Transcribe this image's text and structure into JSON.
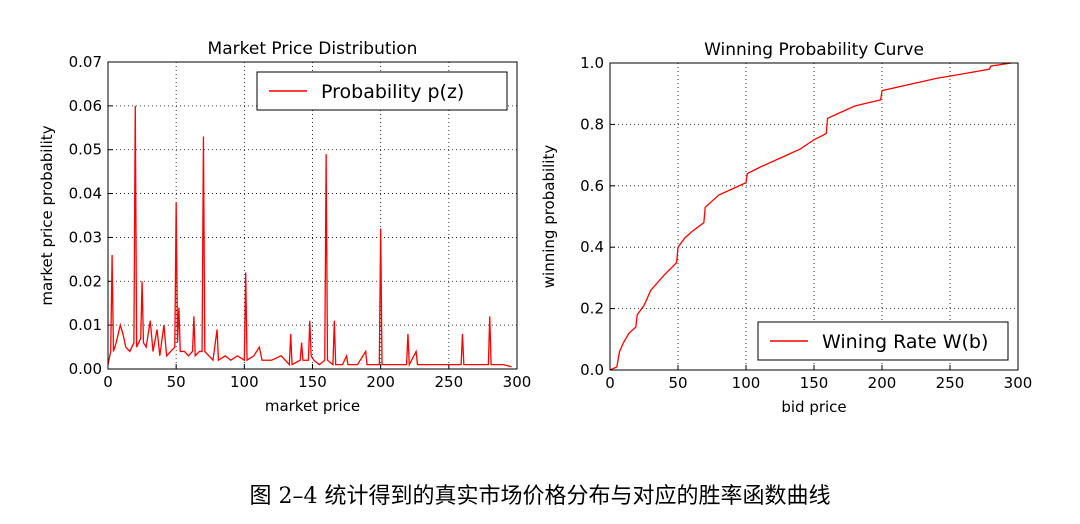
{
  "chart_data": [
    {
      "type": "line",
      "title": "Market Price Distribution",
      "xlabel": "market price",
      "ylabel": "market price probability",
      "xlim": [
        0,
        300
      ],
      "ylim": [
        0,
        0.07
      ],
      "xticks": [
        0,
        50,
        100,
        150,
        200,
        250,
        300
      ],
      "yticks": [
        {
          "value": 0,
          "label": "0.00"
        },
        {
          "value": 0.01,
          "label": "0.01"
        },
        {
          "value": 0.02,
          "label": "0.02"
        },
        {
          "value": 0.03,
          "label": "0.03"
        },
        {
          "value": 0.04,
          "label": "0.04"
        },
        {
          "value": 0.05,
          "label": "0.05"
        },
        {
          "value": 0.06,
          "label": "0.06"
        },
        {
          "value": 0.07,
          "label": "0.07"
        }
      ],
      "grid": true,
      "legend": "upper right",
      "x": [
        0,
        2,
        3,
        4,
        6,
        9,
        11,
        13,
        16,
        19,
        20,
        21,
        24,
        25,
        26,
        28,
        31,
        33,
        36,
        38,
        41,
        43,
        46,
        49,
        50,
        51,
        52,
        53,
        56,
        59,
        62,
        63,
        64,
        67,
        69,
        70,
        71,
        74,
        77,
        80,
        81,
        86,
        90,
        95,
        100,
        101,
        102,
        107,
        111,
        113,
        120,
        127,
        133,
        134,
        135,
        141,
        142,
        143,
        147,
        148,
        149,
        151,
        155,
        159,
        160,
        161,
        165,
        166,
        167,
        172,
        175,
        176,
        183,
        189,
        190,
        196,
        199,
        200,
        201,
        210,
        219,
        220,
        221,
        226,
        227,
        240,
        250,
        259,
        260,
        261,
        270,
        279,
        280,
        281,
        290,
        296
      ],
      "series": [
        {
          "name": "Probability p(z)",
          "color": "#ff0000",
          "values": [
            0.001,
            0.004,
            0.026,
            0.004,
            0.006,
            0.01,
            0.008,
            0.005,
            0.004,
            0.006,
            0.06,
            0.005,
            0.007,
            0.02,
            0.006,
            0.005,
            0.011,
            0.004,
            0.009,
            0.003,
            0.01,
            0.003,
            0.004,
            0.005,
            0.038,
            0.006,
            0.014,
            0.004,
            0.004,
            0.003,
            0.004,
            0.012,
            0.003,
            0.004,
            0.004,
            0.053,
            0.004,
            0.003,
            0.002,
            0.009,
            0.002,
            0.003,
            0.002,
            0.003,
            0.002,
            0.022,
            0.002,
            0.003,
            0.005,
            0.002,
            0.002,
            0.003,
            0.001,
            0.008,
            0.001,
            0.002,
            0.006,
            0.002,
            0.002,
            0.011,
            0.003,
            0.002,
            0.001,
            0.002,
            0.049,
            0.002,
            0.001,
            0.011,
            0.001,
            0.001,
            0.003,
            0.001,
            0.001,
            0.004,
            0.001,
            0.001,
            0.001,
            0.032,
            0.001,
            0.001,
            0.001,
            0.008,
            0.001,
            0.004,
            0.001,
            0.001,
            0.001,
            0.001,
            0.008,
            0.001,
            0.001,
            0.001,
            0.012,
            0.001,
            0.001,
            0.0005
          ]
        }
      ]
    },
    {
      "type": "line",
      "title": "Winning Probability Curve",
      "xlabel": "bid price",
      "ylabel": "winning probability",
      "xlim": [
        0,
        300
      ],
      "ylim": [
        0,
        1
      ],
      "xticks": [
        0,
        50,
        100,
        150,
        200,
        250,
        300
      ],
      "yticks": [
        {
          "value": 0,
          "label": "0.0"
        },
        {
          "value": 0.2,
          "label": "0.2"
        },
        {
          "value": 0.4,
          "label": "0.4"
        },
        {
          "value": 0.6,
          "label": "0.6"
        },
        {
          "value": 0.8,
          "label": "0.8"
        },
        {
          "value": 1,
          "label": "1.0"
        }
      ],
      "grid": true,
      "legend": "lower right",
      "x": [
        0,
        5,
        7,
        10,
        14,
        19,
        20,
        25,
        30,
        40,
        49,
        50,
        55,
        60,
        69,
        70,
        80,
        90,
        100,
        101,
        110,
        120,
        130,
        140,
        150,
        159,
        160,
        170,
        180,
        199,
        200,
        220,
        240,
        260,
        279,
        280,
        295
      ],
      "series": [
        {
          "name": "Wining Rate W(b)",
          "color": "#ff0000",
          "values": [
            0,
            0.01,
            0.06,
            0.09,
            0.12,
            0.14,
            0.18,
            0.21,
            0.26,
            0.31,
            0.35,
            0.4,
            0.43,
            0.45,
            0.48,
            0.53,
            0.57,
            0.59,
            0.61,
            0.64,
            0.66,
            0.68,
            0.7,
            0.72,
            0.75,
            0.77,
            0.82,
            0.84,
            0.86,
            0.88,
            0.91,
            0.93,
            0.95,
            0.965,
            0.98,
            0.99,
            1.0
          ]
        }
      ]
    }
  ],
  "caption": "图 2–4 统计得到的真实市场价格分布与对应的胜率函数曲线"
}
